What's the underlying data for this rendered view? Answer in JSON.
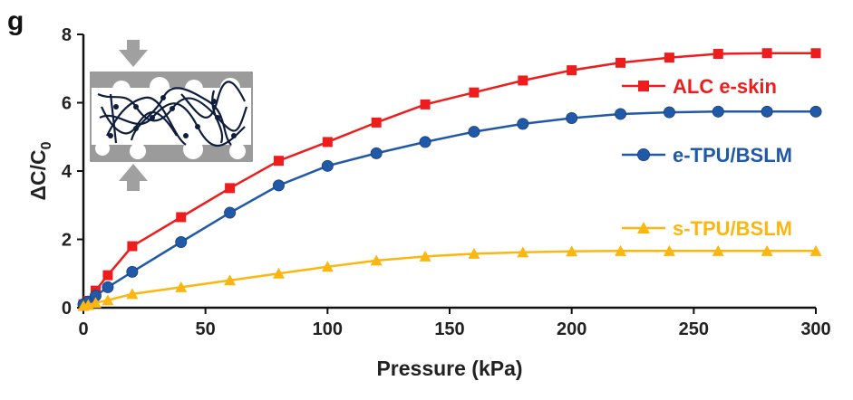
{
  "panel_label": "g",
  "chart_data": {
    "type": "line",
    "xlabel": "Pressure (kPa)",
    "ylabel_main": "ΔC/C",
    "ylabel_sub": "0",
    "xlim": [
      0,
      300
    ],
    "ylim": [
      0,
      8
    ],
    "x_ticks": [
      "0",
      "50",
      "100",
      "150",
      "200",
      "250",
      "300"
    ],
    "y_ticks": [
      "0",
      "2",
      "4",
      "6",
      "8"
    ],
    "grid": false,
    "legend_placement": "right, beside each curve",
    "series": [
      {
        "name": "ALC e-skin",
        "color": "#ee1c1c",
        "marker": "square",
        "x": [
          0,
          2,
          5,
          10,
          20,
          40,
          60,
          80,
          100,
          120,
          140,
          160,
          180,
          200,
          220,
          240,
          260,
          280,
          300
        ],
        "y": [
          0.1,
          0.2,
          0.5,
          0.95,
          1.8,
          2.65,
          3.5,
          4.3,
          4.85,
          5.42,
          5.95,
          6.3,
          6.65,
          6.95,
          7.17,
          7.32,
          7.43,
          7.45,
          7.45
        ]
      },
      {
        "name": "e-TPU/BSLM",
        "color": "#2059a8",
        "marker": "circle",
        "x": [
          0,
          2,
          5,
          10,
          20,
          40,
          60,
          80,
          100,
          120,
          140,
          160,
          180,
          200,
          220,
          240,
          260,
          280,
          300
        ],
        "y": [
          0.1,
          0.18,
          0.35,
          0.6,
          1.05,
          1.92,
          2.78,
          3.58,
          4.15,
          4.52,
          4.85,
          5.15,
          5.38,
          5.55,
          5.67,
          5.72,
          5.74,
          5.74,
          5.74
        ]
      },
      {
        "name": "s-TPU/BSLM",
        "color": "#fbb710",
        "marker": "triangle",
        "x": [
          0,
          2,
          5,
          10,
          20,
          40,
          60,
          80,
          100,
          120,
          140,
          160,
          180,
          200,
          220,
          240,
          260,
          280,
          300
        ],
        "y": [
          0.05,
          0.08,
          0.14,
          0.22,
          0.4,
          0.6,
          0.8,
          1.0,
          1.2,
          1.38,
          1.5,
          1.58,
          1.62,
          1.65,
          1.66,
          1.66,
          1.66,
          1.66,
          1.66
        ]
      }
    ]
  },
  "inset": {
    "colors": {
      "plate": "#9b9b9b",
      "arrow": "#a0a0a0",
      "network": "#0f1d3c",
      "background": "#ffffff"
    }
  }
}
